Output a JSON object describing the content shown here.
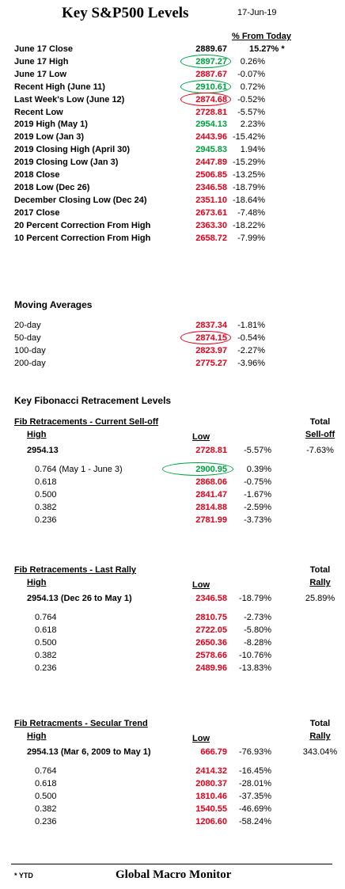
{
  "header": {
    "title": "Key S&P500 Levels",
    "date": "17-Jun-19",
    "pct_header": "% From Today"
  },
  "key_levels": [
    {
      "label": "June 17 Close",
      "value": "2889.67",
      "pct": "15.27% *",
      "color": "black",
      "pct_bold": true
    },
    {
      "label": "June 17 High",
      "value": "2897.27",
      "pct": "0.26%",
      "color": "green",
      "circle": "green"
    },
    {
      "label": "June 17 Low",
      "value": "2887.67",
      "pct": "-0.07%",
      "color": "red"
    },
    {
      "label": "Recent High (June 11)",
      "value": "2910.61",
      "pct": "0.72%",
      "color": "green",
      "circle": "green"
    },
    {
      "label": "Last Week's Low (June 12)",
      "value": "2874.68",
      "pct": "-0.52%",
      "color": "red",
      "circle": "red"
    },
    {
      "label": "Recent Low",
      "value": "2728.81",
      "pct": "-5.57%",
      "color": "red"
    },
    {
      "label": "2019 High  (May 1)",
      "value": "2954.13",
      "pct": "2.23%",
      "color": "green"
    },
    {
      "label": "2019 Low  (Jan 3)",
      "value": "2443.96",
      "pct": "-15.42%",
      "color": "red"
    },
    {
      "label": "2019 Closing High (April 30)",
      "value": "2945.83",
      "pct": "1.94%",
      "color": "green"
    },
    {
      "label": "2019 Closing Low (Jan 3)",
      "value": "2447.89",
      "pct": "-15.29%",
      "color": "red"
    },
    {
      "label": "2018 Close",
      "value": "2506.85",
      "pct": "-13.25%",
      "color": "red"
    },
    {
      "label": "2018 Low (Dec 26)",
      "value": "2346.58",
      "pct": "-18.79%",
      "color": "red"
    },
    {
      "label": "December Closing Low (Dec 24)",
      "value": "2351.10",
      "pct": "-18.64%",
      "color": "red"
    },
    {
      "label": "2017 Close",
      "value": "2673.61",
      "pct": "-7.48%",
      "color": "red"
    },
    {
      "label": "20 Percent Correction From High",
      "value": "2363.30",
      "pct": "-18.22%",
      "color": "red"
    },
    {
      "label": "10 Percent Correction From High",
      "value": "2658.72",
      "pct": "-7.99%",
      "color": "red"
    }
  ],
  "moving_averages": {
    "title": "Moving Averages",
    "rows": [
      {
        "label": "20-day",
        "value": "2837.34",
        "pct": "-1.81%"
      },
      {
        "label": "50-day",
        "value": "2874.15",
        "pct": "-0.54%",
        "circle": "red"
      },
      {
        "label": "100-day",
        "value": "2823.97",
        "pct": "-2.27%"
      },
      {
        "label": "200-day",
        "value": "2775.27",
        "pct": "-3.96%"
      }
    ]
  },
  "fib_title": "Key Fibonacci Retracement Levels",
  "fib_sections": [
    {
      "title": "Fib Retracements - Current Sell-off",
      "total_label_1": "Total",
      "total_label_2": "Sell-off",
      "high_label": "High",
      "low_label": "Low",
      "base": {
        "label": "2954.13",
        "value": "2728.81",
        "pct": "-5.57%",
        "total": "-7.63%"
      },
      "rows": [
        {
          "label": "0.764  (May 1 - June 3)",
          "value": "2900.95",
          "pct": "0.39%",
          "color": "green",
          "circle": "green"
        },
        {
          "label": "0.618",
          "value": "2868.06",
          "pct": "-0.75%",
          "color": "red"
        },
        {
          "label": "0.500",
          "value": "2841.47",
          "pct": "-1.67%",
          "color": "red"
        },
        {
          "label": "0.382",
          "value": "2814.88",
          "pct": "-2.59%",
          "color": "red"
        },
        {
          "label": "0.236",
          "value": "2781.99",
          "pct": "-3.73%",
          "color": "red"
        }
      ]
    },
    {
      "title": "Fib Retracements - Last Rally",
      "total_label_1": "Total",
      "total_label_2": "Rally",
      "high_label": "High",
      "low_label": "Low",
      "base": {
        "label": "2954.13  (Dec 26 to May 1)",
        "value": "2346.58",
        "pct": "-18.79%",
        "total": "25.89%"
      },
      "rows": [
        {
          "label": "0.764",
          "value": "2810.75",
          "pct": "-2.73%",
          "color": "red"
        },
        {
          "label": "0.618",
          "value": "2722.05",
          "pct": "-5.80%",
          "color": "red"
        },
        {
          "label": "0.500",
          "value": "2650.36",
          "pct": "-8.28%",
          "color": "red"
        },
        {
          "label": "0.382",
          "value": "2578.66",
          "pct": "-10.76%",
          "color": "red"
        },
        {
          "label": "0.236",
          "value": "2489.96",
          "pct": "-13.83%",
          "color": "red"
        }
      ]
    },
    {
      "title": "Fib Retracments - Secular Trend",
      "total_label_1": "Total",
      "total_label_2": "Rally",
      "high_label": "High",
      "low_label": "Low",
      "base": {
        "label": "2954.13  (Mar 6, 2009  to May 1)",
        "value": "666.79",
        "pct": "-76.93%",
        "total": "343.04%"
      },
      "rows": [
        {
          "label": "0.764",
          "value": "2414.32",
          "pct": "-16.45%",
          "color": "red"
        },
        {
          "label": "0.618",
          "value": "2080.37",
          "pct": "-28.01%",
          "color": "red"
        },
        {
          "label": "0.500",
          "value": "1810.46",
          "pct": "-37.35%",
          "color": "red"
        },
        {
          "label": "0.382",
          "value": "1540.55",
          "pct": "-46.69%",
          "color": "red"
        },
        {
          "label": "0.236",
          "value": "1206.60",
          "pct": "-58.24%",
          "color": "red"
        }
      ]
    }
  ],
  "footer": {
    "note": "* YTD",
    "brand": "Global Macro Monitor"
  },
  "colors": {
    "red": "#e0001a",
    "green": "#00a040",
    "black": "#000000"
  }
}
